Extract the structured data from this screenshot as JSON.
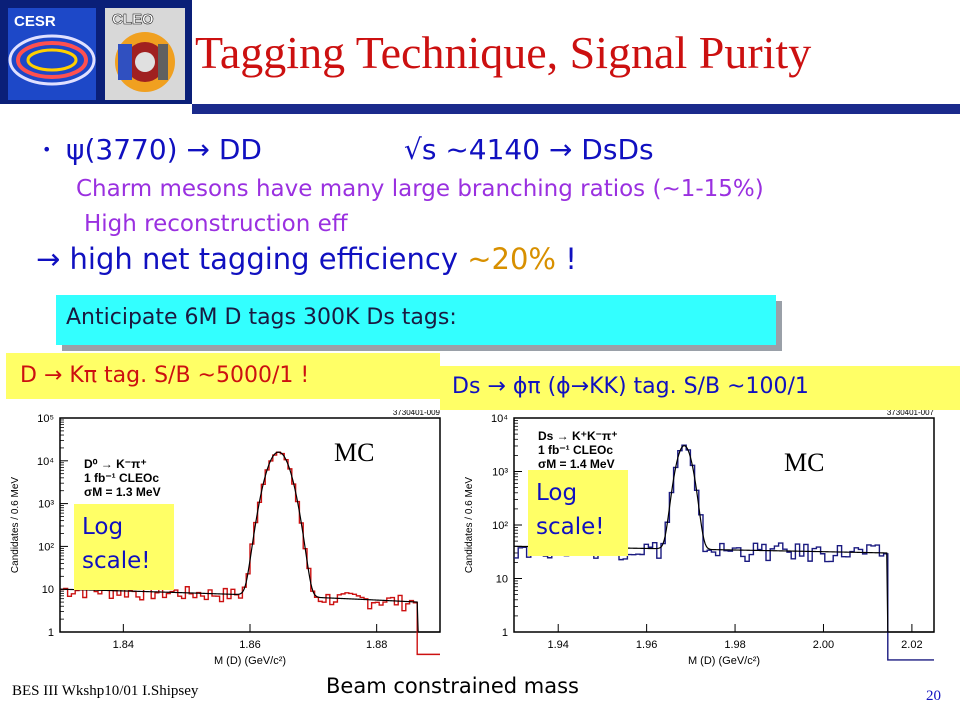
{
  "header": {
    "logo_cesr": "CESR",
    "logo_cleo": "CLEO",
    "title": "Tagging Technique, Signal Purity"
  },
  "bullets": {
    "psi_line": "ψ(3770) → DD",
    "sqrt_line": "√s ~4140 → DsDs",
    "charm_line": "Charm mesons have many large branching ratios (~1-15%)",
    "reco_line": "High reconstruction eff",
    "net_eff_prefix": "→ high net tagging efficiency",
    "net_eff_value": "~20%",
    "net_eff_suffix": "!"
  },
  "anticipate": "Anticipate 6M D tags 300K Ds tags:",
  "tag_left": "D → Kπ tag.  S/B ~5000/1 !",
  "tag_right": "Ds → ϕπ  (ϕ→KK) tag. S/B ~100/1",
  "footer": {
    "left": "BES III Wkshp10/01 I.Shipsey",
    "center": "Beam constrained mass",
    "page": "20"
  },
  "colors": {
    "title": "#cc1010",
    "text_blue": "#1010c0",
    "text_purple": "#9a30e0",
    "accent_orange": "#d89000",
    "box_yellow": "#ffff66",
    "box_cyan": "#33ffff",
    "fit_red": "#cc1010",
    "fit_navy": "#1a1a80"
  },
  "chart_data": [
    {
      "type": "line",
      "plot_id": "3730401-009",
      "annotation_mc": "MC",
      "legend_lines": [
        "D⁰ → K⁻π⁺",
        "1 fb⁻¹ CLEOc",
        "σM = 1.3 MeV"
      ],
      "log_label": "Log scale!",
      "xlabel": "M (D) (GeV/c²)",
      "ylabel": "Candidates / 0.6 MeV",
      "x_ticks": [
        "1.84",
        "1.86",
        "1.88"
      ],
      "y_ticks": [
        "1",
        "10",
        "10²",
        "10³",
        "10⁴",
        "10⁵"
      ],
      "xlim": [
        1.83,
        1.89
      ],
      "ylim_log10": [
        0,
        5
      ],
      "log_scale": true,
      "series": [
        {
          "color": "#cc1010",
          "peak_x": 1.8645,
          "peak_y": 16000,
          "sigma": 0.0013,
          "background_y": 10,
          "background_end_y": 5,
          "endpoint": 1.8865
        }
      ]
    },
    {
      "type": "line",
      "plot_id": "3730401-007",
      "annotation_mc": "MC",
      "legend_lines": [
        "Ds → K⁺K⁻π⁺",
        "1 fb⁻¹ CLEOc",
        "σM = 1.4 MeV"
      ],
      "log_label": "Log scale!",
      "xlabel": "M (D) (GeV/c²)",
      "ylabel": "Candidates / 0.6 MeV",
      "x_ticks": [
        "1.94",
        "1.96",
        "1.98",
        "2.00",
        "2.02"
      ],
      "y_ticks": [
        "1",
        "10",
        "10²",
        "10³",
        "10⁴"
      ],
      "xlim": [
        1.93,
        2.025
      ],
      "ylim_log10": [
        0,
        4
      ],
      "log_scale": true,
      "series": [
        {
          "color": "#1a1a80",
          "peak_x": 1.9685,
          "peak_y": 3000,
          "sigma": 0.0014,
          "background_y": 40,
          "background_end_y": 30,
          "endpoint": 2.0145
        }
      ]
    }
  ]
}
